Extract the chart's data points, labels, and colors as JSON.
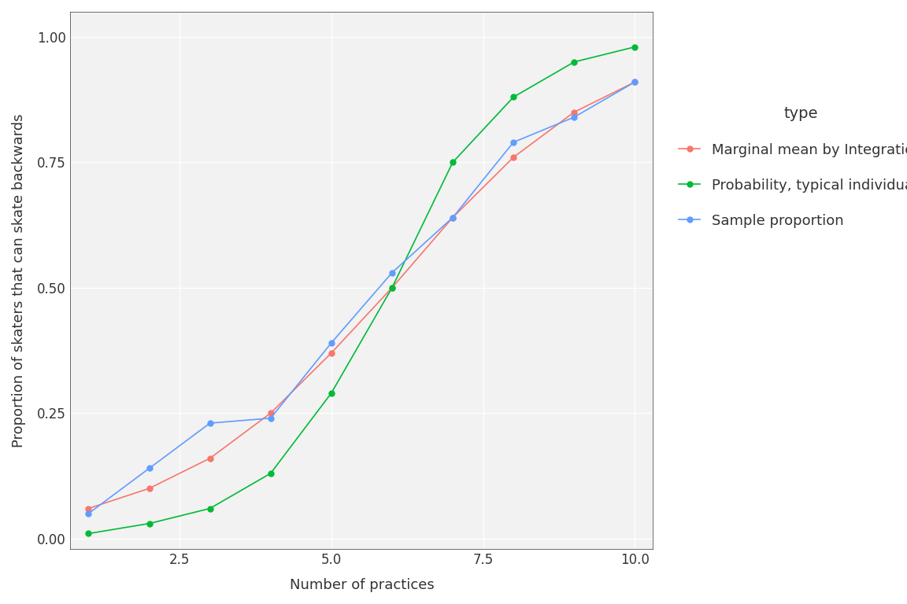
{
  "x_values": [
    1,
    2,
    3,
    4,
    5,
    6,
    7,
    8,
    9,
    10
  ],
  "marginal_mean": [
    0.06,
    0.1,
    0.16,
    0.25,
    0.37,
    0.5,
    0.64,
    0.76,
    0.85,
    0.91
  ],
  "typical_individual": [
    0.01,
    0.03,
    0.06,
    0.13,
    0.29,
    0.5,
    0.75,
    0.88,
    0.95,
    0.98
  ],
  "sample_proportion": [
    0.05,
    0.14,
    0.23,
    0.24,
    0.39,
    0.53,
    0.64,
    0.79,
    0.84,
    0.91
  ],
  "marginal_color": "#F8766D",
  "typical_color": "#00BA38",
  "sample_color": "#619CFF",
  "background_color": "#FFFFFF",
  "panel_background": "#F2F2F2",
  "grid_color": "#FFFFFF",
  "xlabel": "Number of practices",
  "ylabel": "Proportion of skaters that can skate backwards",
  "legend_title": "type",
  "legend_labels": [
    "Marginal mean by Integration",
    "Probability, typical individual",
    "Sample proportion"
  ],
  "ylim": [
    -0.02,
    1.05
  ],
  "xlim": [
    0.7,
    10.3
  ],
  "yticks": [
    0.0,
    0.25,
    0.5,
    0.75,
    1.0
  ],
  "xticks": [
    2.5,
    5.0,
    7.5,
    10.0
  ],
  "marker": "o",
  "marker_size": 5,
  "line_width": 1.2,
  "axis_text_color": "#333333",
  "label_color": "#333333",
  "label_fontsize": 13,
  "tick_fontsize": 12,
  "legend_fontsize": 13,
  "legend_title_fontsize": 14
}
